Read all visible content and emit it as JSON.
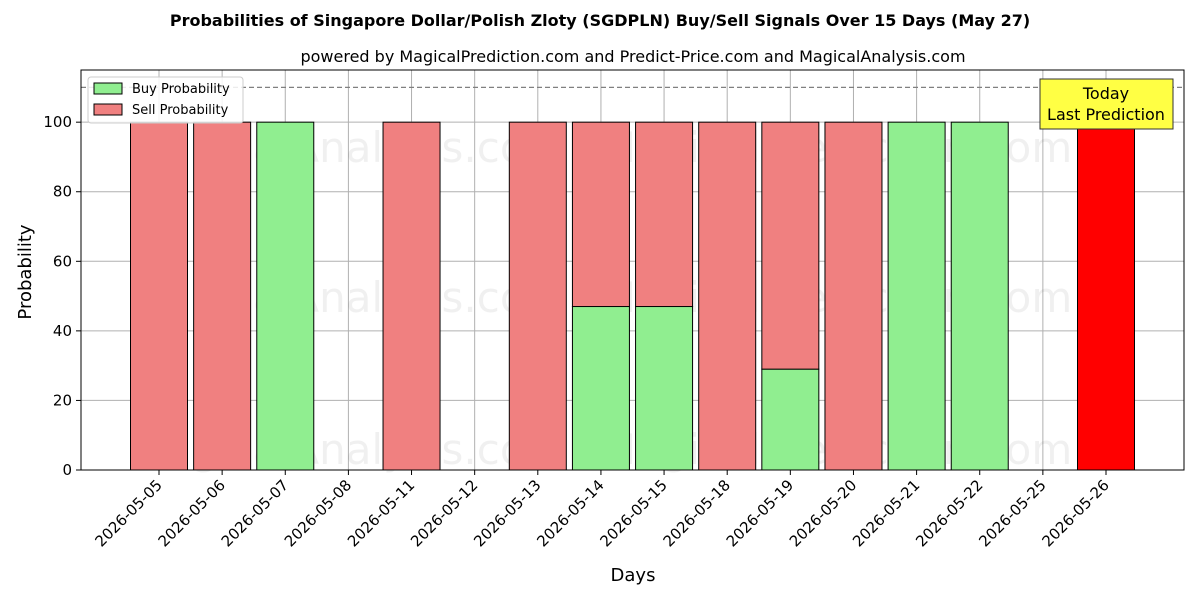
{
  "chart_data": {
    "type": "bar",
    "stacked": true,
    "title": "Probabilities of Singapore Dollar/Polish Zloty (SGDPLN) Buy/Sell Signals Over 15 Days (May 27)",
    "subtitle": "powered by MagicalPrediction.com and Predict-Price.com and MagicalAnalysis.com",
    "xlabel": "Days",
    "ylabel": "Probability",
    "ylim": [
      0,
      115
    ],
    "yticks": [
      0,
      20,
      40,
      60,
      80,
      100
    ],
    "grid": true,
    "legend_position": "top-left",
    "threshold_line": 110,
    "categories": [
      "2026-05-05",
      "2026-05-06",
      "2026-05-07",
      "2026-05-08",
      "2026-05-11",
      "2026-05-12",
      "2026-05-13",
      "2026-05-14",
      "2026-05-15",
      "2026-05-18",
      "2026-05-19",
      "2026-05-20",
      "2026-05-21",
      "2026-05-22",
      "2026-05-25",
      "2026-05-26"
    ],
    "series": [
      {
        "name": "Buy Probability",
        "color": "#90ee90",
        "values": [
          0,
          0,
          100,
          0,
          0,
          0,
          0,
          47,
          47,
          0,
          29,
          0,
          100,
          100,
          0,
          0
        ]
      },
      {
        "name": "Sell Probability",
        "color": "#f08080",
        "values": [
          100,
          100,
          0,
          0,
          100,
          0,
          100,
          53,
          53,
          100,
          71,
          100,
          0,
          0,
          0,
          100
        ]
      }
    ],
    "highlight": {
      "category": "2026-05-26",
      "color": "#ff0000"
    },
    "annotation": {
      "line1": "Today",
      "line2": "Last Prediction",
      "background": "#ffff44"
    },
    "watermarks": [
      "MagicalAnalysis.com",
      "MagicalPrediction.com"
    ]
  }
}
